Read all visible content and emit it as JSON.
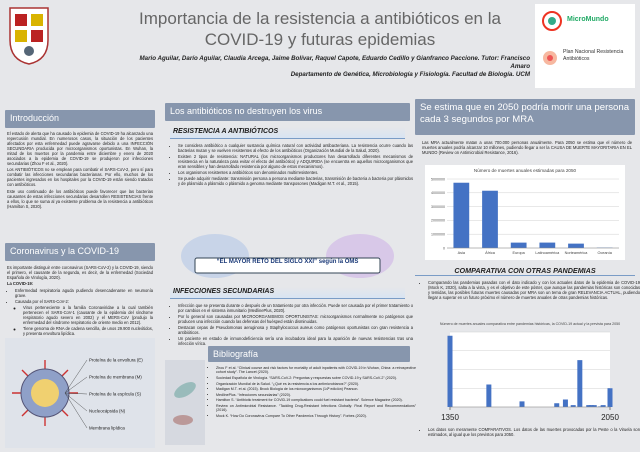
{
  "header": {
    "title": "Importancia de la resistencia a antibióticos en la COVID-19 y futuras epidemias",
    "authors": "Mario Aguilar, Darío Aguilar, Claudia Arcega, Jaime Bolívar, Raquel Capote, Eduardo Cedillo y Gianfranco Paccione. Tutor: Francisco Amaro",
    "department": "Departamento de Genética, Microbiología y Fisiología. Facultad de Biología. UCM",
    "logos": [
      "MicroMundo",
      "Plan Nacional Resistencia Antibióticos"
    ]
  },
  "introduccion": {
    "title": "Introducción",
    "paragraphs": [
      "El estado de alerta que ha causado la epidemia de COVID-19 ha alcanzado una repercusión mundial. En numerosos casos, la situación de los pacientes afectados por esta enfermedad puede agravarse debido a una INFECCIÓN SECUNDARIA producida por microorganismos oportunistas. En Wuhan, la mitad de los muertos por la pandemia entre diciembre y enero de 2020 asociados a la epidemia de COVID-19 se produjeron por infecciones secundarias (Zhou F et al., 2020).",
      "Los ANTIBIÓTICOS no se emplean para combatir el SARS-CoV-2, pero sí para combatir las infecciones secundarias bacterianas. Por ello, muchos de los pacientes ingresados en los hospitales por la COVID-19 están siendo tratados con antibióticos.",
      "Este uso continuado de los antibióticos puede favorecer que las bacterias causantes de estas infecciones secundarias desarrollen RESISTENCIAS frente a ellos, lo que se suma al ya existente problema de la resistencia a antibióticos (Hamilton S, 2020)."
    ]
  },
  "coronavirus": {
    "title": "Coronavirus y la COVID-19",
    "paragraph": "Es importante distinguir entre coronavirus (SARS-CoV-2) y la COVID-19, siendo el primero, el causante de la segunda, es decir, de la enfermedad (Sociedad Española de Virología, 2020).",
    "list_title": "La COVID-19:",
    "items": [
      "Enfermedad respiratoria aguda pudiendo desencadenarse en neumonía grave.",
      "Causada por el SARS-CoV-2:",
      "Virus perteneciente a la familia Coronaviridae a la cual también pertenecen el SARS-CoV-1 (causante de la epidemia del síndrome respiratorio agudo severo en 2002) y el MERS-CoV (produjo la enfermedad del síndrome respiratorio de oriente medio en 2012).",
      "Tiene genoma de RNA de cadena sencilla, de unos 29.900 nucleótidos, y presenta envoltura lipídica."
    ],
    "virus_labels": [
      "Proteína de la envoltura (E)",
      "Proteína de membrana (M)",
      "Proteína de la espícula (S)",
      "Nucleocápsida (N)",
      "Membrana lipídica"
    ]
  },
  "antibioticos": {
    "title": "Los antibióticos no destruyen los virus",
    "resistencia_title": "RESISTENCIA A ANTIBIÓTICOS",
    "resistencia_items": [
      "Se considera antibiótico a cualquier sustancia química natural con actividad antibacteriana. La resistencia ocurre cuando las bacterias mutan y se vuelven resistentes al efecto de los antibióticos (Organización Mundial de la Salud, 2020).",
      "Existen 2 tipos de resistencia: NATURAL (los microorganismos productores han desarrollado diferentes mecanismos de resistencia en la naturaleza para evitar el efecto del antibiótico) y ADQUIRIDA (se encuentra en aquellos microorganismos que eran sensibles y han desarrollado resistencia por alguno de estos mecanismos).",
      "Los organismos resistentes a antibióticos son denominados multirresistentes.",
      "Se puede adquirir mediante: transmisión persona a persona mediante bacterias, transmisión de bacteria a bacteria por plásmidos y de plásmido a plásmido o plásmido a genoma mediante transposones (Madigan M.T. et al., 2015)."
    ],
    "quote": "“EL MAYOR RETO DEL SIGLO XXI” según la OMS",
    "infecciones_title": "INFECCIONES SECUNDARIAS",
    "infecciones_items": [
      "Infección que se presenta durante o después de un tratamiento por otra infección. Puede ser causada por el primer tratamiento o por cambios en el sistema inmunitario (MedlinePlus, 2020).",
      "Por lo general son causadas por MICROORGANISMOS OPORTUNISTAS: microorganismos normalmente no patógenos que producen una infección cuando las defensas del huésped están disminuidas.",
      "Destacan cepas de Pseudomonas aeruginosa y Staphylococcus aureus como patógenos oportunistas con gran resistencia a antibióticos.",
      "Un paciente en estado de inmunodeficiencia sería una incubadora ideal para la aparición de nuevas resistencias tras una infección vírica."
    ]
  },
  "bibliografia": {
    "title": "Bibliografía",
    "refs": [
      "Zhou F et al. “Clinical course and risk factors for mortality of adult inpatients with COVID-19 in Wuhan, China: a retrospective cohort study”. The Lancet (2020).",
      "Sociedad Española de Virología. “SARS-CoV-2: Preguntas y respuestas sobre COVID-19 y SARS-CoV-2” (2020).",
      "Organización Mundial de la Salud. “¿Qué es la resistencia a los antimicrobianos?” (2020).",
      "Madigan M.T. et al. (2015). Brock Biología de los microorganismos (14ª edición) Pearson.",
      "MedlinePlus. “Infecciones secundarias” (2020).",
      "Hamilton S. “Antibiotic treatment for COVID-19 complications could fuel resistant bacteria”. Science Magazine (2020).",
      "Review on Antimicrobial Resistance. “Tackling Drug-Resistant Infections Globally: Final Report and Recommendations” (2016).",
      "Mock K. “How Do Coronavirus Compare To Other Pandemics Through History”. Forbes (2020)."
    ]
  },
  "mra": {
    "title": "Se estima que en 2050 podría morir una persona cada 3 segundos por MRA",
    "paragraph": "Las MRA actualmente matan a unas 700.000 personas anualmente. Para 2050 se estima que el número de muertes anuales podría alcanzar 10 millones, pudiendo llegar a ser la CAUSA DE MUERTE MAYORITARIA EN EL MUNDO (Review on Antimicrobial Resistance, 2016).",
    "comparativa_title": "COMPARATIVA CON OTRAS PANDEMIAS",
    "comparativa_paragraph": "Comparando las pandemias pasadas con el dato indicado y con los actuales datos de la epidemia de COVID-19 (Mock K, 2020), salta a la vista, y es el objetivo de este póster, que aunque las pandemias históricas son conocidas y temidas, las posibles futuras muertes causadas por MRA son un tema de gran RELEVANCIA ACTUAL, pudiendo llegar a superar en un futuro próximo el número de muertes anuales de otras pandemias históricas.",
    "note": "Los datos son meramente COMPARATIVOS. Los datos de las muertes provocadas por la Peste o la Viruela son estimados, al igual que los previstos para 2050."
  },
  "chart_data": [
    {
      "type": "bar",
      "title": "Número de muertes anuales estimadas para 2050",
      "categories": [
        "Asia",
        "África",
        "Europa",
        "Latinoamérica",
        "Norteamérica",
        "Oceanía"
      ],
      "values": [
        4730000,
        4150000,
        390000,
        392000,
        317000,
        22000
      ],
      "color": "#4472c4",
      "ylim": [
        0,
        5000000
      ],
      "yticks": [
        0,
        1000000,
        2000000,
        3000000,
        4000000,
        5000000
      ],
      "grid": true
    },
    {
      "type": "bar",
      "title": "Número de muertes anuales comparativa entre pandemias históricas, la COVID-19 actual y la prevista para 2050",
      "x": [
        1350,
        1520,
        1665,
        1817,
        1855,
        1889,
        1918,
        1957,
        1968,
        1981,
        2009,
        2020,
        2050
      ],
      "values": [
        38,
        12,
        3,
        2,
        4,
        1,
        25,
        1,
        1,
        1,
        0.3,
        1,
        10
      ],
      "color": "#4472c4",
      "xlim": [
        1350,
        2050
      ],
      "xticks": [
        1350,
        2050
      ],
      "ylim": [
        0,
        40
      ],
      "yticks": [
        0,
        10,
        20,
        30,
        40
      ],
      "grid": true
    }
  ]
}
